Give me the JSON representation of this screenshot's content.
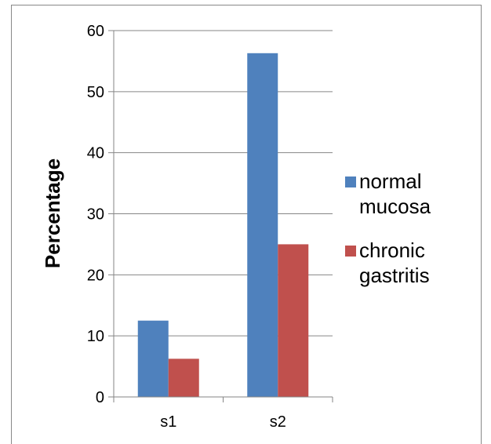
{
  "chart_data": {
    "type": "bar",
    "categories": [
      "s1",
      "s2"
    ],
    "series": [
      {
        "name": "normal mucosa",
        "values": [
          12.5,
          56.3
        ],
        "color": "#4F81BD",
        "legend_lines": [
          "normal",
          "mucosa"
        ]
      },
      {
        "name": "chronic gastritis",
        "values": [
          6.25,
          25
        ],
        "color": "#C0504D",
        "legend_lines": [
          "chronic",
          "gastritis"
        ]
      }
    ],
    "title": "",
    "xlabel": "",
    "ylabel": "Percentage",
    "ylim": [
      0,
      60
    ],
    "yticks": [
      0,
      10,
      20,
      30,
      40,
      50,
      60
    ],
    "grid": true,
    "legend_position": "right"
  }
}
